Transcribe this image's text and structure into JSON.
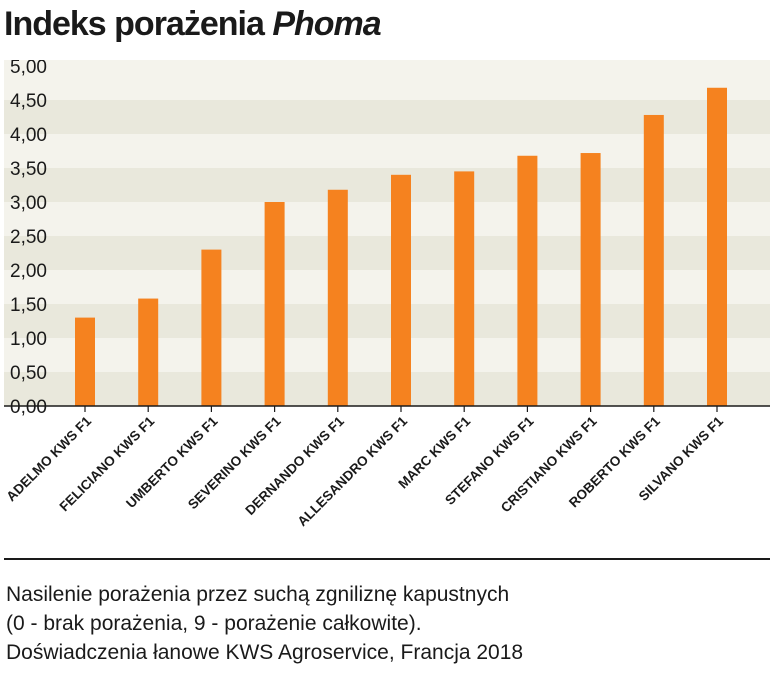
{
  "title": {
    "main": "Indeks porażenia",
    "emphasis": "Phoma"
  },
  "footnote": {
    "line1": "Nasilenie porażenia przez suchą zgniliznę kapustnych",
    "line2": "(0 - brak porażenia, 9 - porażenie całkowite).",
    "line3": "Doświadczenia łanowe KWS Agroservice, Francja 2018"
  },
  "colors": {
    "bar": "#f5821f",
    "band_dark": "#e9e8dc",
    "band_light": "#f4f3ec",
    "axis": "#1a1a1a"
  },
  "chart_data": {
    "type": "bar",
    "title": "Indeks porażenia Phoma",
    "xlabel": "",
    "ylabel": "",
    "ylim": [
      0,
      5
    ],
    "yticks": [
      "0,00",
      "0,50",
      "1,00",
      "1,50",
      "2,00",
      "2,50",
      "3,00",
      "3,50",
      "4,00",
      "4,50",
      "5,00"
    ],
    "grid": "alternating horizontal bands",
    "legend": "none",
    "categories": [
      "ADELMO KWS F1",
      "FELICIANO KWS F1",
      "UMBERTO KWS F1",
      "SEVERINO KWS F1",
      "DERNANDO KWS F1",
      "ALLESANDRO KWS F1",
      "MARC KWS F1",
      "STEFANO KWS F1",
      "CRISTIANO KWS F1",
      "ROBERTO KWS F1",
      "SILVANO KWS F1"
    ],
    "values": [
      1.3,
      1.58,
      2.3,
      3.0,
      3.18,
      3.4,
      3.45,
      3.68,
      3.72,
      4.28,
      4.68
    ]
  }
}
